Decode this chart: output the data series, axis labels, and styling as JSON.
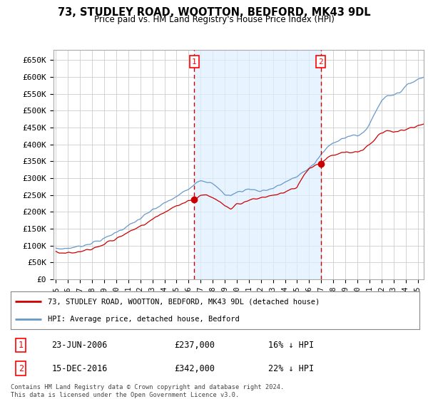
{
  "title": "73, STUDLEY ROAD, WOOTTON, BEDFORD, MK43 9DL",
  "subtitle": "Price paid vs. HM Land Registry's House Price Index (HPI)",
  "ylabel_ticks": [
    "£0",
    "£50K",
    "£100K",
    "£150K",
    "£200K",
    "£250K",
    "£300K",
    "£350K",
    "£400K",
    "£450K",
    "£500K",
    "£550K",
    "£600K",
    "£650K"
  ],
  "ytick_values": [
    0,
    50000,
    100000,
    150000,
    200000,
    250000,
    300000,
    350000,
    400000,
    450000,
    500000,
    550000,
    600000,
    650000
  ],
  "ylim": [
    0,
    680000
  ],
  "xlim_start": 1994.8,
  "xlim_end": 2025.5,
  "sale1_x": 2006.48,
  "sale1_y": 237000,
  "sale2_x": 2016.96,
  "sale2_y": 342000,
  "vline1_x": 2006.48,
  "vline2_x": 2016.96,
  "legend_line1": "73, STUDLEY ROAD, WOOTTON, BEDFORD, MK43 9DL (detached house)",
  "legend_line2": "HPI: Average price, detached house, Bedford",
  "table_row1": [
    "1",
    "23-JUN-2006",
    "£237,000",
    "16% ↓ HPI"
  ],
  "table_row2": [
    "2",
    "15-DEC-2016",
    "£342,000",
    "22% ↓ HPI"
  ],
  "footer": "Contains HM Land Registry data © Crown copyright and database right 2024.\nThis data is licensed under the Open Government Licence v3.0.",
  "price_line_color": "#cc0000",
  "hpi_line_color": "#6699cc",
  "fill_color": "#ddeeff",
  "background_color": "#ffffff",
  "grid_color": "#cccccc"
}
